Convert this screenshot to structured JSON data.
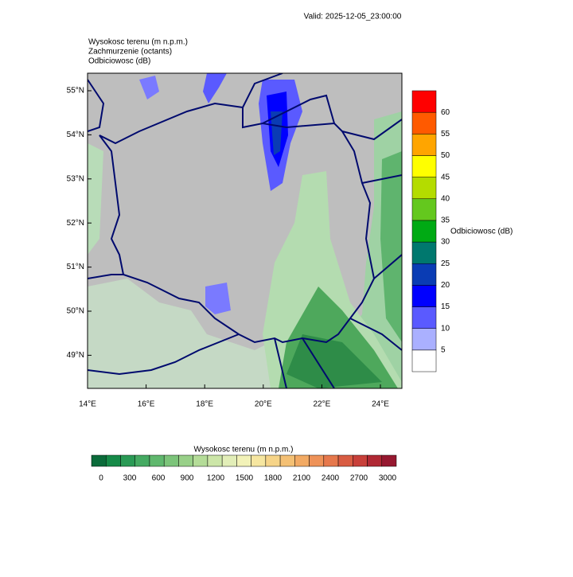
{
  "header": {
    "valid": "Valid: 2025-12-05_23:00:00",
    "fields": [
      "Wysokosc terenu  (m n.p.m.)",
      "Zachmurzenie  (octants)",
      "Odbiciowosc  (dB)"
    ]
  },
  "map": {
    "lat_labels": [
      "55°N",
      "54°N",
      "53°N",
      "52°N",
      "51°N",
      "50°N",
      "49°N"
    ],
    "lon_labels": [
      "14°E",
      "16°E",
      "18°E",
      "20°E",
      "22°E",
      "24°E"
    ]
  },
  "reflectivity_bar": {
    "title": "Odbiciowosc  (dB)",
    "labels": [
      "5",
      "10",
      "15",
      "20",
      "25",
      "30",
      "35",
      "40",
      "45",
      "50",
      "55",
      "60"
    ],
    "colors": [
      "#ffffff",
      "#aab0ff",
      "#5a5aff",
      "#0000ff",
      "#0a3cb4",
      "#00786e",
      "#00aa14",
      "#64c81e",
      "#b4dc00",
      "#ffff00",
      "#ffa500",
      "#ff5a00",
      "#ff0000"
    ]
  },
  "elevation_bar": {
    "title": "Wysokosc terenu  (m n.p.m.)",
    "labels": [
      "0",
      "300",
      "600",
      "900",
      "1200",
      "1500",
      "1800",
      "2100",
      "2400",
      "2700",
      "3000"
    ],
    "colors": [
      "#0b6b3a",
      "#168a48",
      "#2a9a55",
      "#45aa62",
      "#60b86e",
      "#7cc47a",
      "#98d088",
      "#b4dc98",
      "#cce6a8",
      "#e2eeb8",
      "#f2f2b8",
      "#f6e6a0",
      "#f6d488",
      "#f4c074",
      "#f2aa64",
      "#ee9258",
      "#e6784c",
      "#d85c42",
      "#c8403a",
      "#b02834",
      "#961830"
    ]
  }
}
